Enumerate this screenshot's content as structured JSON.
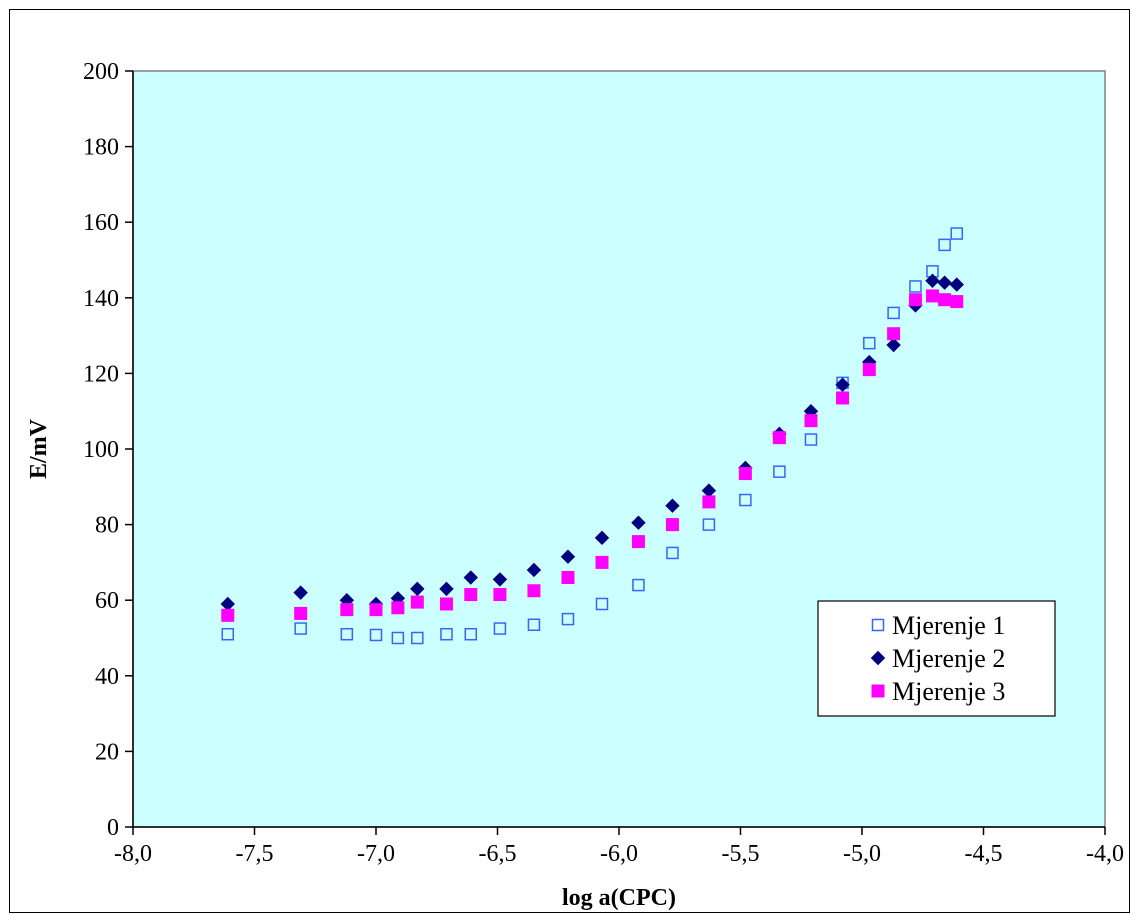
{
  "chart_data": {
    "type": "scatter",
    "title": "",
    "xlabel": "log a(CPC)",
    "ylabel": "E/mV",
    "xlim": [
      -8.0,
      -4.0
    ],
    "ylim": [
      0,
      200
    ],
    "x_ticks": [
      "-8,0",
      "-7,5",
      "-7,0",
      "-6,5",
      "-6,0",
      "-5,5",
      "-5,0",
      "-4,5",
      "-4,0"
    ],
    "y_ticks": [
      "0",
      "20",
      "40",
      "60",
      "80",
      "100",
      "120",
      "140",
      "160",
      "180",
      "200"
    ],
    "grid": false,
    "legend_position": "bottom-right",
    "plot_background": "#ccffff",
    "series": [
      {
        "name": "Mjerenje 1",
        "marker": "open-square",
        "color": "#3366ff",
        "x": [
          -7.61,
          -7.31,
          -7.12,
          -7.0,
          -6.91,
          -6.83,
          -6.71,
          -6.61,
          -6.49,
          -6.35,
          -6.21,
          -6.07,
          -5.92,
          -5.78,
          -5.63,
          -5.48,
          -5.34,
          -5.21,
          -5.08,
          -4.97,
          -4.87,
          -4.78,
          -4.71,
          -4.66,
          -4.61
        ],
        "y": [
          51,
          52.5,
          51,
          50.8,
          50,
          50,
          51,
          51,
          52.5,
          53.5,
          55,
          59,
          64,
          72.5,
          80,
          86.5,
          94,
          102.5,
          117.5,
          128,
          136,
          143,
          147,
          154,
          157
        ]
      },
      {
        "name": "Mjerenje 2",
        "marker": "diamond",
        "color": "#000080",
        "x": [
          -7.61,
          -7.31,
          -7.12,
          -7.0,
          -6.91,
          -6.83,
          -6.71,
          -6.61,
          -6.49,
          -6.35,
          -6.21,
          -6.07,
          -5.92,
          -5.78,
          -5.63,
          -5.48,
          -5.34,
          -5.21,
          -5.08,
          -4.97,
          -4.87,
          -4.78,
          -4.71,
          -4.66,
          -4.61
        ],
        "y": [
          59,
          62,
          60,
          59,
          60.5,
          63,
          63,
          66,
          65.5,
          68,
          71.5,
          76.5,
          80.5,
          85,
          89,
          95,
          104,
          110,
          117,
          123,
          127.5,
          138,
          144.5,
          144,
          143.5
        ]
      },
      {
        "name": "Mjerenje 3",
        "marker": "filled-square",
        "color": "#ff00ff",
        "x": [
          -7.61,
          -7.31,
          -7.12,
          -7.0,
          -6.91,
          -6.83,
          -6.71,
          -6.61,
          -6.49,
          -6.35,
          -6.21,
          -6.07,
          -5.92,
          -5.78,
          -5.63,
          -5.48,
          -5.34,
          -5.21,
          -5.08,
          -4.97,
          -4.87,
          -4.78,
          -4.71,
          -4.66,
          -4.61
        ],
        "y": [
          56,
          56.5,
          57.5,
          57.5,
          58,
          59.5,
          59,
          61.5,
          61.5,
          62.5,
          66,
          70,
          75.5,
          80,
          86,
          93.5,
          103,
          107.5,
          113.5,
          121,
          130.5,
          139.5,
          140.5,
          139.5,
          139
        ]
      }
    ]
  }
}
